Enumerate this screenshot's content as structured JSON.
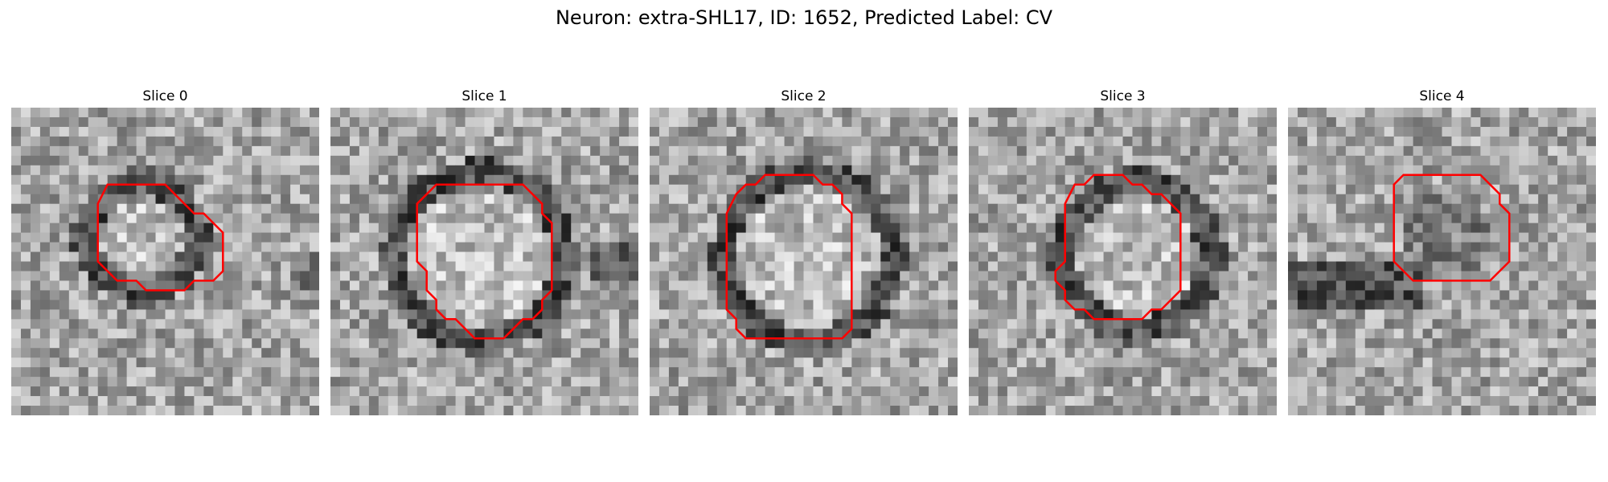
{
  "figure": {
    "title": "Neuron: extra-SHL17, ID: 1652, Predicted Label: CV"
  },
  "panels": [
    {
      "title": "Slice 0",
      "contour": [
        [
          10,
          8
        ],
        [
          16,
          8
        ],
        [
          18,
          10
        ],
        [
          19,
          11
        ],
        [
          20,
          11
        ],
        [
          22,
          13
        ],
        [
          22,
          17
        ],
        [
          21,
          18
        ],
        [
          19,
          18
        ],
        [
          18,
          19
        ],
        [
          14,
          19
        ],
        [
          13,
          18
        ],
        [
          11,
          18
        ],
        [
          9,
          16
        ],
        [
          9,
          10
        ]
      ]
    },
    {
      "title": "Slice 1",
      "contour": [
        [
          11,
          8
        ],
        [
          20,
          8
        ],
        [
          22,
          10
        ],
        [
          22,
          11
        ],
        [
          23,
          12
        ],
        [
          23,
          19
        ],
        [
          22,
          20
        ],
        [
          22,
          21
        ],
        [
          21,
          22
        ],
        [
          20,
          22
        ],
        [
          18,
          24
        ],
        [
          15,
          24
        ],
        [
          13,
          22
        ],
        [
          12,
          22
        ],
        [
          11,
          21
        ],
        [
          11,
          20
        ],
        [
          10,
          19
        ],
        [
          10,
          17
        ],
        [
          9,
          16
        ],
        [
          9,
          10
        ]
      ]
    },
    {
      "title": "Slice 2",
      "contour": [
        [
          9,
          9
        ],
        [
          10,
          8
        ],
        [
          11,
          8
        ],
        [
          12,
          7
        ],
        [
          17,
          7
        ],
        [
          18,
          8
        ],
        [
          19,
          8
        ],
        [
          20,
          9
        ],
        [
          20,
          10
        ],
        [
          21,
          11
        ],
        [
          21,
          23
        ],
        [
          20,
          24
        ],
        [
          10,
          24
        ],
        [
          9,
          23
        ],
        [
          9,
          22
        ],
        [
          8,
          21
        ],
        [
          8,
          11
        ]
      ]
    },
    {
      "title": "Slice 3",
      "contour": [
        [
          11,
          8
        ],
        [
          12,
          8
        ],
        [
          13,
          7
        ],
        [
          16,
          7
        ],
        [
          17,
          8
        ],
        [
          18,
          8
        ],
        [
          19,
          9
        ],
        [
          20,
          9
        ],
        [
          21,
          10
        ],
        [
          22,
          11
        ],
        [
          22,
          19
        ],
        [
          20,
          21
        ],
        [
          19,
          21
        ],
        [
          18,
          22
        ],
        [
          13,
          22
        ],
        [
          12,
          21
        ],
        [
          11,
          21
        ],
        [
          10,
          20
        ],
        [
          10,
          19
        ],
        [
          9,
          18
        ],
        [
          9,
          17
        ],
        [
          10,
          16
        ],
        [
          10,
          15
        ],
        [
          10,
          10
        ]
      ]
    },
    {
      "title": "Slice 4",
      "contour": [
        [
          12,
          7
        ],
        [
          20,
          7
        ],
        [
          22,
          9
        ],
        [
          22,
          10
        ],
        [
          23,
          11
        ],
        [
          23,
          16
        ],
        [
          21,
          18
        ],
        [
          13,
          18
        ],
        [
          11,
          16
        ],
        [
          11,
          8
        ]
      ]
    }
  ]
}
